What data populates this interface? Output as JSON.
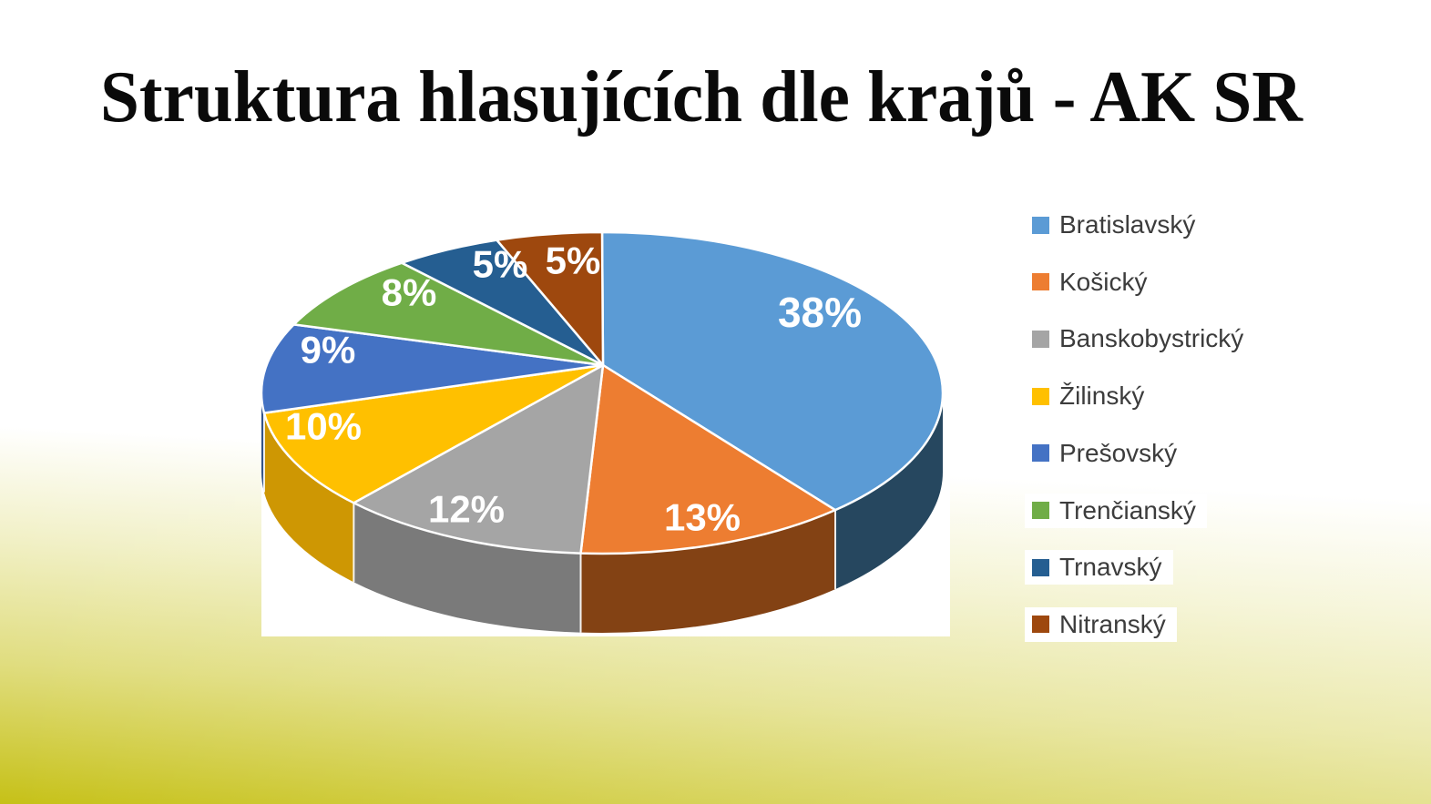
{
  "title": "Struktura hlasujících dle krajů - AK SR",
  "chart_data": {
    "type": "pie",
    "style": "3d",
    "title": "Struktura hlasujících dle krajů - AK SR",
    "unit": "%",
    "total": 100,
    "legend_position": "right",
    "data_labels": "percent, white, inside slices",
    "slices": [
      {
        "label": "Bratislavský",
        "value": 38,
        "display": "38%",
        "color": "#5B9BD5",
        "side_color": "#26475F"
      },
      {
        "label": "Košický",
        "value": 13,
        "display": "13%",
        "color": "#ED7D31",
        "side_color": "#834214"
      },
      {
        "label": "Banskobystrický",
        "value": 12,
        "display": "12%",
        "color": "#A5A5A5",
        "side_color": "#7A7A7A"
      },
      {
        "label": "Žilinský",
        "value": 10,
        "display": "10%",
        "color": "#FFC000",
        "side_color": "#CE9703"
      },
      {
        "label": "Prešovský",
        "value": 9,
        "display": "9%",
        "color": "#4472C4",
        "side_color": "#2D4E85"
      },
      {
        "label": "Trenčianský",
        "value": 8,
        "display": "8%",
        "color": "#70AD47",
        "side_color": "#4F7A32"
      },
      {
        "label": "Trnavský",
        "value": 5,
        "display": "5%",
        "color": "#255E91",
        "side_color": "#173A5A"
      },
      {
        "label": "Nitranský",
        "value": 5,
        "display": "5%",
        "color": "#9E480E",
        "side_color": "#6B3009"
      }
    ],
    "background": {
      "slide_top": "#FFFFFF",
      "slide_bottom": "#C6C117",
      "chart_area": "#FFFFFF"
    }
  }
}
